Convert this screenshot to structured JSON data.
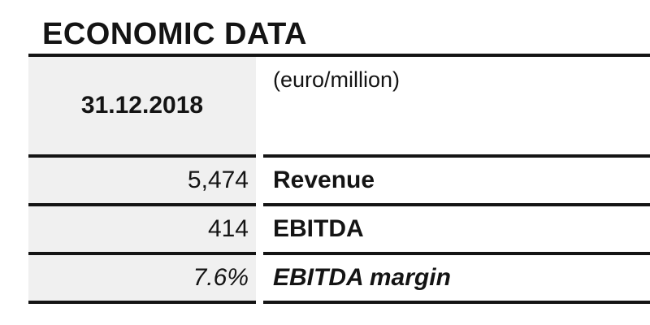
{
  "title": "ECONOMIC DATA",
  "table": {
    "header": {
      "date": "31.12.2018",
      "unit": "(euro/million)"
    },
    "rows": [
      {
        "value": "5,474",
        "label": "Revenue"
      },
      {
        "value": "414",
        "label": "EBITDA"
      },
      {
        "value": "7.6%",
        "label": "EBITDA margin"
      }
    ]
  },
  "colors": {
    "cell_bg": "#f0f0f0",
    "rule": "#141414",
    "text": "#141414",
    "page_bg": "#ffffff"
  }
}
